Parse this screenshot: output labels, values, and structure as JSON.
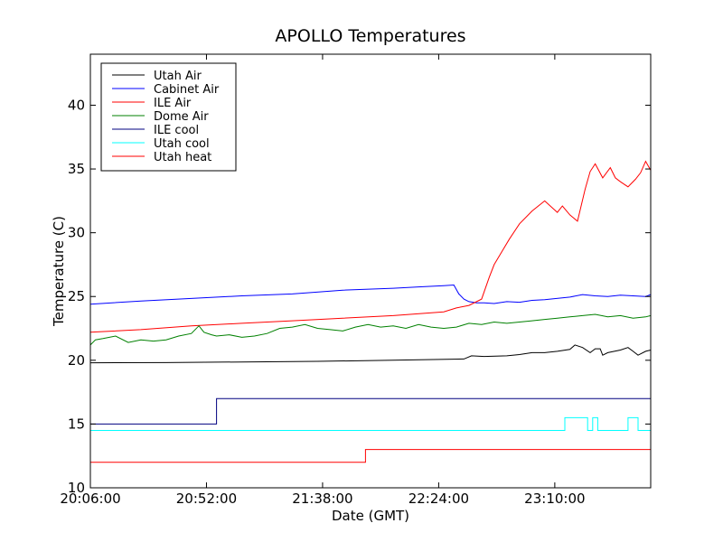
{
  "chart_data": {
    "type": "line",
    "title": "APOLLO Temperatures",
    "xlabel": "Date (GMT)",
    "ylabel": "Temperature (C)",
    "xlim": [
      0,
      222
    ],
    "ylim": [
      10,
      44
    ],
    "x_unit": "minutes since 20:06:00",
    "xticks": [
      {
        "value": 0,
        "label": "20:06:00"
      },
      {
        "value": 46,
        "label": "20:52:00"
      },
      {
        "value": 92,
        "label": "21:38:00"
      },
      {
        "value": 138,
        "label": "22:24:00"
      },
      {
        "value": 184,
        "label": "23:10:00"
      }
    ],
    "yticks": [
      {
        "value": 10,
        "label": "10"
      },
      {
        "value": 15,
        "label": "15"
      },
      {
        "value": 20,
        "label": "20"
      },
      {
        "value": 25,
        "label": "25"
      },
      {
        "value": 30,
        "label": "30"
      },
      {
        "value": 35,
        "label": "35"
      },
      {
        "value": 40,
        "label": "40"
      }
    ],
    "legend_position": "top-left",
    "series": [
      {
        "name": "Utah Air",
        "color": "#000000",
        "x": [
          0,
          30,
          60,
          90,
          120,
          148,
          151,
          156,
          165,
          170,
          175,
          180,
          185,
          190,
          192,
          195,
          198,
          200,
          202,
          203,
          205,
          210,
          213,
          215,
          217,
          220,
          222
        ],
        "y": [
          19.8,
          19.82,
          19.87,
          19.92,
          20.0,
          20.1,
          20.35,
          20.3,
          20.35,
          20.45,
          20.6,
          20.6,
          20.7,
          20.85,
          21.2,
          21.0,
          20.6,
          20.9,
          20.9,
          20.4,
          20.6,
          20.8,
          21.0,
          20.7,
          20.4,
          20.7,
          20.8
        ]
      },
      {
        "name": "Cabinet Air",
        "color": "#0000ff",
        "x": [
          0,
          20,
          40,
          60,
          80,
          100,
          120,
          130,
          140,
          144,
          146,
          148,
          150,
          153,
          156,
          160,
          165,
          170,
          175,
          180,
          190,
          195,
          200,
          205,
          210,
          215,
          220,
          222
        ],
        "y": [
          24.4,
          24.65,
          24.85,
          25.05,
          25.2,
          25.5,
          25.65,
          25.75,
          25.85,
          25.9,
          25.2,
          24.8,
          24.6,
          24.5,
          24.5,
          24.45,
          24.6,
          24.55,
          24.7,
          24.75,
          24.95,
          25.15,
          25.05,
          25.0,
          25.1,
          25.05,
          25.0,
          25.15
        ]
      },
      {
        "name": "ILE Air",
        "color": "#ff0000",
        "x": [
          0,
          20,
          40,
          60,
          80,
          100,
          120,
          140,
          145,
          150,
          155,
          158,
          160,
          163,
          166,
          170,
          175,
          180,
          185,
          187,
          190,
          193,
          196,
          198,
          200,
          203,
          206,
          208,
          210,
          213,
          216,
          218,
          220,
          222
        ],
        "y": [
          22.2,
          22.4,
          22.7,
          22.9,
          23.1,
          23.3,
          23.5,
          23.8,
          24.1,
          24.3,
          24.8,
          26.5,
          27.5,
          28.5,
          29.5,
          30.7,
          31.7,
          32.5,
          31.6,
          32.1,
          31.4,
          30.9,
          33.4,
          34.8,
          35.4,
          34.3,
          35.1,
          34.3,
          34.0,
          33.6,
          34.2,
          34.7,
          35.6,
          34.9
        ]
      },
      {
        "name": "Dome Air",
        "color": "#008000",
        "x": [
          0,
          2,
          5,
          10,
          15,
          20,
          25,
          30,
          35,
          40,
          43,
          45,
          48,
          50,
          55,
          60,
          65,
          70,
          75,
          80,
          85,
          90,
          95,
          100,
          105,
          110,
          115,
          120,
          125,
          130,
          135,
          140,
          145,
          150,
          155,
          160,
          165,
          170,
          175,
          180,
          185,
          190,
          195,
          200,
          205,
          210,
          215,
          220,
          222
        ],
        "y": [
          21.2,
          21.6,
          21.7,
          21.9,
          21.4,
          21.6,
          21.5,
          21.6,
          21.9,
          22.1,
          22.7,
          22.2,
          22.0,
          21.9,
          22.0,
          21.8,
          21.9,
          22.1,
          22.5,
          22.6,
          22.8,
          22.5,
          22.4,
          22.3,
          22.6,
          22.8,
          22.6,
          22.7,
          22.5,
          22.8,
          22.6,
          22.5,
          22.6,
          22.9,
          22.8,
          23.0,
          22.9,
          23.0,
          23.1,
          23.2,
          23.3,
          23.4,
          23.5,
          23.6,
          23.4,
          23.5,
          23.3,
          23.4,
          23.5
        ]
      },
      {
        "name": "ILE cool",
        "color": "#000080",
        "x": [
          0,
          50,
          50,
          222
        ],
        "y": [
          15.0,
          15.0,
          17.0,
          17.0
        ]
      },
      {
        "name": "Utah cool",
        "color": "#00ffff",
        "x": [
          0,
          188,
          188,
          197,
          197,
          199,
          199,
          201,
          201,
          213,
          213,
          217,
          217,
          222
        ],
        "y": [
          14.5,
          14.5,
          15.5,
          15.5,
          14.5,
          14.5,
          15.5,
          15.5,
          14.5,
          14.5,
          15.5,
          15.5,
          14.5,
          14.5
        ]
      },
      {
        "name": "Utah heat",
        "color": "#ff0000",
        "x": [
          0,
          109,
          109,
          222
        ],
        "y": [
          12.0,
          12.0,
          13.0,
          13.0
        ]
      }
    ]
  }
}
